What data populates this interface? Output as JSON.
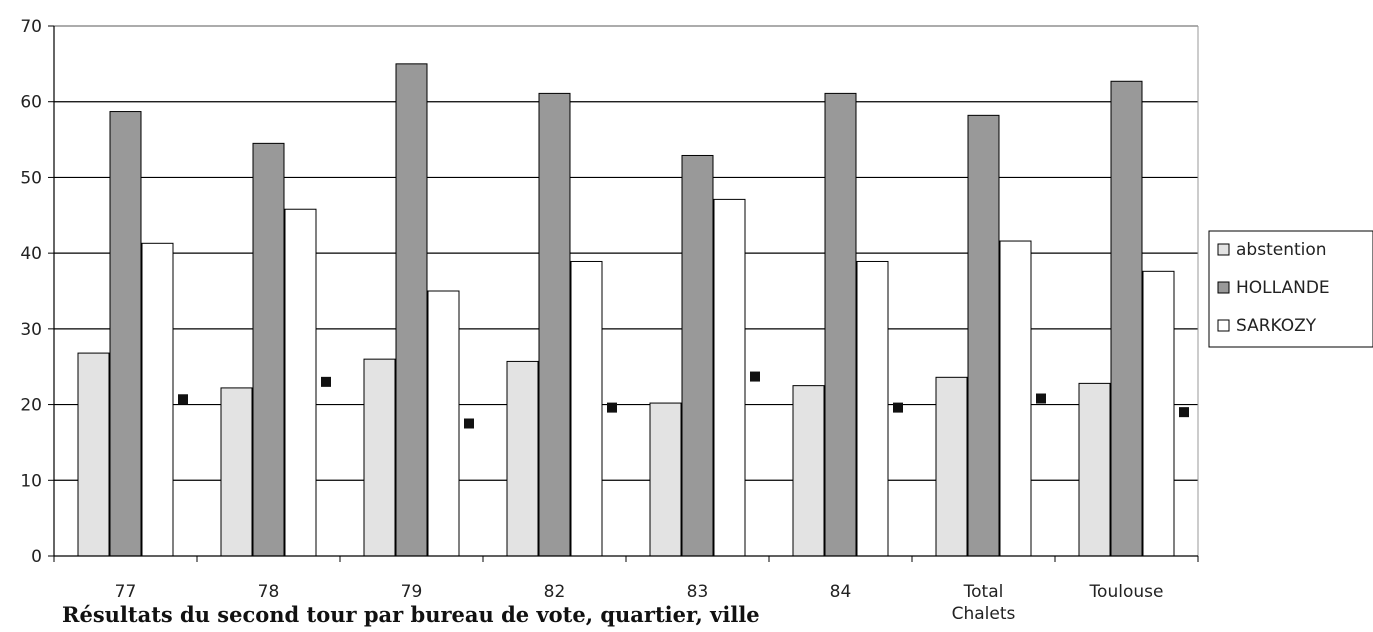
{
  "caption": "Résultats du second tour par bureau de vote, quartier, ville",
  "chart_data": {
    "type": "bar",
    "categories": [
      "77",
      "78",
      "79",
      "82",
      "83",
      "84",
      "Total\nChalets",
      "Toulouse"
    ],
    "series": [
      {
        "name": "abstention",
        "values": [
          26.8,
          22.2,
          26.0,
          25.7,
          20.2,
          22.5,
          23.6,
          22.8
        ],
        "color": "#e3e3e3"
      },
      {
        "name": "HOLLANDE",
        "values": [
          58.7,
          54.5,
          65.0,
          61.1,
          52.9,
          61.1,
          58.2,
          62.7
        ],
        "color": "#999999"
      },
      {
        "name": "SARKOZY",
        "values": [
          41.3,
          45.8,
          35.0,
          38.9,
          47.1,
          38.9,
          41.6,
          37.6
        ],
        "color": "#ffffff"
      }
    ],
    "markers": [
      20.7,
      23.0,
      17.5,
      19.6,
      23.7,
      19.6,
      20.8,
      19.0
    ],
    "y_ticks": [
      "0",
      "10",
      "20",
      "30",
      "40",
      "50",
      "60",
      "70"
    ],
    "ylim": [
      0,
      70
    ],
    "grid": true,
    "legend_position": "right"
  }
}
